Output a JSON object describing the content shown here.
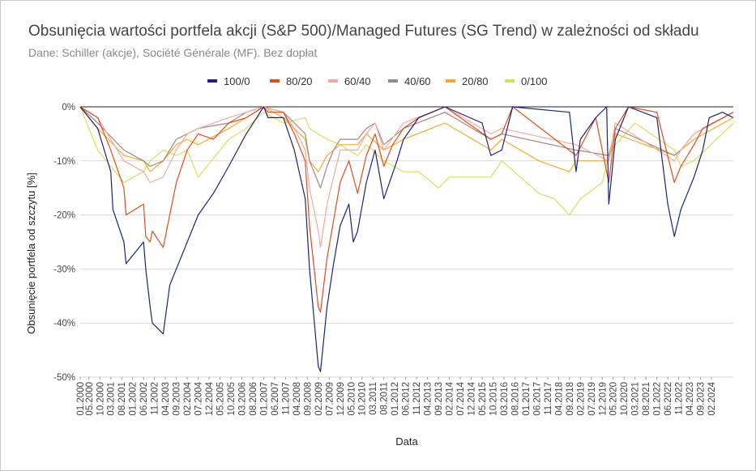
{
  "title": "Obsunięcia wartości portfela akcji (S&P 500)/Managed Futures (SG Trend) w zależności od składu",
  "subtitle": "Dane: Schiller (akcje), Société Générale (MF). Bez dopłat",
  "chart_data": {
    "type": "line",
    "xlabel": "Data",
    "ylabel": "Obsunięcie portfela od szczytu [%]",
    "ylim": [
      -50,
      0
    ],
    "y_ticks": [
      0,
      -10,
      -20,
      -30,
      -40,
      -50
    ],
    "y_tick_labels": [
      "0%",
      "-10%",
      "-20%",
      "-30%",
      "-40%",
      "-50%"
    ],
    "x_tick_labels": [
      "01.2000",
      "05.2000",
      "10.2000",
      "03.2001",
      "08.2001",
      "01.2002",
      "06.2002",
      "11.2002",
      "04.2003",
      "09.2003",
      "02.2004",
      "07.2004",
      "12.2004",
      "05.2005",
      "10.2005",
      "03.2006",
      "08.2006",
      "01.2007",
      "06.2007",
      "11.2007",
      "04.2008",
      "09.2008",
      "02.2009",
      "07.2009",
      "12.2009",
      "05.2010",
      "10.2010",
      "03.2011",
      "08.2011",
      "01.2012",
      "06.2012",
      "11.2012",
      "04.2013",
      "09.2013",
      "02.2014",
      "07.2014",
      "12.2014",
      "05.2015",
      "10.2015",
      "03.2016",
      "08.2016",
      "01.2017",
      "06.2017",
      "11.2017",
      "04.2018",
      "09.2018",
      "02.2019",
      "07.2019",
      "12.2019",
      "05.2020",
      "10.2020",
      "03.2021",
      "08.2021",
      "01.2022",
      "06.2022",
      "11.2022",
      "04.2023",
      "09.2023",
      "02.2024"
    ],
    "x_start": "01.2000",
    "x_end": "12.2024",
    "grid": true,
    "legend_position": "top",
    "series": [
      {
        "name": "100/0",
        "color": "#1a237e",
        "x": [
          "01.2000",
          "09.2000",
          "03.2001",
          "04.2001",
          "09.2001",
          "10.2001",
          "06.2002",
          "07.2002",
          "09.2002",
          "10.2002",
          "03.2003",
          "06.2003",
          "10.2003",
          "02.2004",
          "07.2004",
          "02.2005",
          "09.2005",
          "05.2006",
          "01.2007",
          "03.2007",
          "10.2007",
          "03.2008",
          "08.2008",
          "10.2008",
          "02.2009",
          "03.2009",
          "06.2009",
          "09.2009",
          "12.2009",
          "04.2010",
          "06.2010",
          "08.2010",
          "12.2010",
          "04.2011",
          "08.2011",
          "02.2012",
          "05.2012",
          "12.2012",
          "12.2013",
          "05.2015",
          "09.2015",
          "02.2016",
          "07.2016",
          "09.2018",
          "12.2018",
          "02.2019",
          "09.2019",
          "02.2020",
          "03.2020",
          "06.2020",
          "12.2020",
          "01.2022",
          "06.2022",
          "09.2022",
          "12.2022",
          "06.2023",
          "10.2023",
          "01.2024",
          "07.2024",
          "12.2024"
        ],
        "values": [
          0,
          -4,
          -12,
          -19,
          -25,
          -29,
          -25,
          -30,
          -37,
          -40,
          -42,
          -33,
          -29,
          -25,
          -20,
          -16,
          -11,
          -5,
          0,
          -2,
          -2,
          -8,
          -17,
          -30,
          -48,
          -49,
          -37,
          -29,
          -22,
          -18,
          -25,
          -23,
          -14,
          -8,
          -17,
          -10,
          -6,
          -2,
          0,
          -3,
          -9,
          -8,
          0,
          -1,
          -12,
          -6,
          -2,
          0,
          -18,
          -6,
          0,
          -2,
          -18,
          -24,
          -19,
          -13,
          -8,
          -2,
          -1,
          -2
        ]
      },
      {
        "name": "80/20",
        "color": "#e64a19",
        "x": [
          "01.2000",
          "09.2000",
          "03.2001",
          "09.2001",
          "10.2001",
          "06.2002",
          "07.2002",
          "09.2002",
          "10.2002",
          "03.2003",
          "06.2003",
          "09.2003",
          "02.2004",
          "07.2004",
          "02.2005",
          "09.2005",
          "05.2006",
          "01.2007",
          "03.2007",
          "10.2007",
          "03.2008",
          "08.2008",
          "10.2008",
          "02.2009",
          "03.2009",
          "06.2009",
          "09.2009",
          "12.2009",
          "04.2010",
          "08.2010",
          "12.2010",
          "04.2011",
          "08.2011",
          "12.2011",
          "05.2012",
          "12.2012",
          "12.2013",
          "09.2015",
          "02.2016",
          "07.2016",
          "12.2018",
          "09.2019",
          "03.2020",
          "06.2020",
          "12.2020",
          "01.2022",
          "09.2022",
          "12.2022",
          "06.2023",
          "10.2023",
          "12.2024"
        ],
        "values": [
          0,
          -2,
          -8,
          -15,
          -20,
          -18,
          -24,
          -25,
          -23,
          -26,
          -20,
          -14,
          -8,
          -5,
          -6,
          -3,
          -2,
          0,
          -1,
          -1,
          -5,
          -10,
          -22,
          -37,
          -38,
          -28,
          -21,
          -14,
          -10,
          -16,
          -9,
          -5,
          -11,
          -7,
          -4,
          -2,
          0,
          -6,
          -5,
          0,
          -9,
          -2,
          -14,
          -4,
          0,
          -1,
          -14,
          -11,
          -7,
          -4,
          -1
        ]
      },
      {
        "name": "60/40",
        "color": "#f4a9a0",
        "x": [
          "01.2000",
          "09.2000",
          "09.2001",
          "06.2002",
          "09.2002",
          "03.2003",
          "09.2003",
          "02.2004",
          "07.2004",
          "09.2005",
          "05.2006",
          "01.2007",
          "10.2007",
          "03.2008",
          "08.2008",
          "10.2008",
          "02.2009",
          "03.2009",
          "06.2009",
          "09.2009",
          "12.2009",
          "08.2010",
          "12.2010",
          "04.2011",
          "08.2011",
          "05.2012",
          "12.2013",
          "09.2015",
          "02.2016",
          "12.2018",
          "03.2020",
          "06.2020",
          "09.2022",
          "12.2022",
          "06.2023",
          "12.2024"
        ],
        "values": [
          0,
          -2,
          -10,
          -12,
          -14,
          -13,
          -8,
          -5,
          -4,
          -2,
          -1,
          0,
          -1,
          -4,
          -8,
          -15,
          -23,
          -26,
          -18,
          -13,
          -8,
          -8,
          -5,
          -3,
          -8,
          -3,
          0,
          -5,
          -4,
          -7,
          -10,
          -3,
          -10,
          -8,
          -5,
          -1
        ]
      },
      {
        "name": "40/60",
        "color": "#a1887f",
        "x": [
          "01.2000",
          "09.2000",
          "09.2001",
          "06.2002",
          "09.2002",
          "03.2003",
          "09.2003",
          "02.2004",
          "07.2004",
          "09.2005",
          "05.2006",
          "01.2007",
          "10.2007",
          "03.2008",
          "08.2008",
          "10.2008",
          "02.2009",
          "03.2009",
          "06.2009",
          "09.2009",
          "12.2009",
          "08.2010",
          "12.2010",
          "04.2011",
          "08.2011",
          "05.2012",
          "12.2013",
          "09.2015",
          "02.2016",
          "12.2018",
          "03.2020",
          "06.2020",
          "09.2022",
          "12.2022",
          "06.2023",
          "12.2024"
        ],
        "values": [
          0,
          -3,
          -8,
          -10,
          -11,
          -10,
          -6,
          -5,
          -4,
          -3,
          -1,
          0,
          -1,
          -3,
          -5,
          -10,
          -14,
          -15,
          -11,
          -8,
          -6,
          -6,
          -4,
          -3,
          -7,
          -4,
          -1,
          -6,
          -5,
          -8,
          -9,
          -4,
          -9,
          -8,
          -5,
          -1
        ]
      },
      {
        "name": "20/80",
        "color": "#f9a825",
        "x": [
          "01.2000",
          "09.2000",
          "09.2001",
          "06.2002",
          "09.2002",
          "03.2003",
          "09.2003",
          "02.2004",
          "07.2004",
          "09.2005",
          "05.2006",
          "01.2007",
          "10.2007",
          "03.2008",
          "08.2008",
          "10.2008",
          "02.2009",
          "06.2009",
          "12.2009",
          "08.2010",
          "12.2010",
          "08.2011",
          "05.2012",
          "12.2013",
          "09.2015",
          "02.2016",
          "07.2017",
          "09.2018",
          "12.2018",
          "03.2020",
          "06.2020",
          "09.2022",
          "12.2022",
          "06.2023",
          "12.2024"
        ],
        "values": [
          0,
          -4,
          -9,
          -10,
          -12,
          -10,
          -7,
          -6,
          -7,
          -4,
          -2,
          0,
          -2,
          -4,
          -6,
          -10,
          -12,
          -9,
          -7,
          -7,
          -5,
          -8,
          -6,
          -3,
          -8,
          -6,
          -10,
          -12,
          -10,
          -10,
          -5,
          -9,
          -8,
          -6,
          -2
        ]
      },
      {
        "name": "0/100",
        "color": "#d4e157",
        "x": [
          "01.2000",
          "09.2000",
          "09.2001",
          "06.2002",
          "09.2002",
          "03.2003",
          "09.2003",
          "02.2004",
          "07.2004",
          "09.2005",
          "05.2006",
          "01.2007",
          "10.2007",
          "08.2008",
          "10.2008",
          "06.2009",
          "12.2009",
          "08.2010",
          "12.2010",
          "08.2011",
          "05.2012",
          "12.2012",
          "09.2013",
          "02.2014",
          "09.2015",
          "02.2016",
          "07.2017",
          "02.2018",
          "09.2018",
          "02.2019",
          "12.2019",
          "03.2020",
          "06.2020",
          "03.2021",
          "09.2022",
          "12.2022",
          "06.2023",
          "12.2024"
        ],
        "values": [
          0,
          -8,
          -14,
          -12,
          -10,
          -8,
          -9,
          -8,
          -13,
          -6,
          -4,
          -1,
          -3,
          -2,
          -4,
          -6,
          -7,
          -9,
          -7,
          -10,
          -12,
          -12,
          -15,
          -13,
          -13,
          -10,
          -16,
          -17,
          -20,
          -17,
          -14,
          -9,
          -7,
          -3,
          -8,
          -11,
          -10,
          -3
        ]
      }
    ]
  }
}
